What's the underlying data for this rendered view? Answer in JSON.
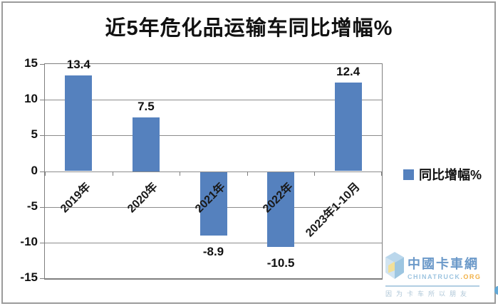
{
  "title": "近5年危化品运输车同比增幅%",
  "legend": {
    "label": "同比增幅%",
    "swatch_color": "#5581BE"
  },
  "colors": {
    "bar": "#5581BE",
    "gridline": "#8C8C8C",
    "plot_border": "#7F7F7F",
    "text": "#111111",
    "watermark_blue": "#5B8FC4",
    "watermark_orange": "#F0A832"
  },
  "chart_data": {
    "type": "bar",
    "title": "近5年危化品运输车同比增幅%",
    "categories": [
      "2019年",
      "2020年",
      "2021年",
      "2022年",
      "2023年1-10月"
    ],
    "series": [
      {
        "name": "同比增幅%",
        "values": [
          13.4,
          7.5,
          -8.9,
          -10.5,
          12.4
        ]
      }
    ],
    "data_labels": [
      "13.4",
      "7.5",
      "-8.9",
      "-10.5",
      "12.4"
    ],
    "ylim": [
      -15,
      15
    ],
    "yticks": [
      15,
      10,
      5,
      0,
      -5,
      -10,
      -15
    ],
    "grid": true,
    "legend_position": "middle-right",
    "bar_color": "#5581BE",
    "xlabel": "",
    "ylabel": ""
  },
  "watermark": {
    "brand_cn": "中國卡車網",
    "brand_en": "CHINATRUCK",
    "brand_suffix": ".ORG",
    "tagline": "因为卡车所以朋友"
  }
}
